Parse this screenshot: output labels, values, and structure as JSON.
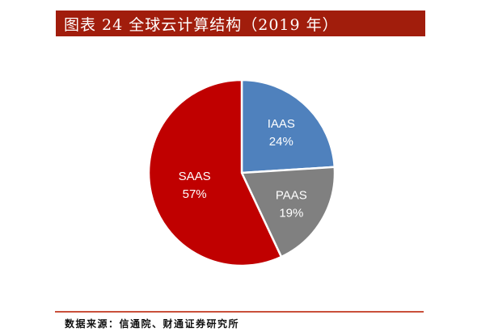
{
  "header": {
    "title": "图表 24 全球云计算结构（2019 年）"
  },
  "footer": {
    "source": "数据来源：信通院、财通证券研究所"
  },
  "colors": {
    "title_bar": "#a11d0c",
    "footer_line": "#c9503a",
    "iaas": "#4f81bd",
    "paas": "#808080",
    "saas": "#c00000"
  },
  "chart_data": {
    "type": "pie",
    "title": "全球云计算结构（2019 年）",
    "categories": [
      "IAAS",
      "PAAS",
      "SAAS"
    ],
    "values": [
      24,
      19,
      57
    ],
    "unit": "%",
    "start_angle_deg": 0,
    "direction": "clockwise",
    "legend": "none (labels inside slices)",
    "slices": [
      {
        "label": "IAAS",
        "value": 24,
        "value_label": "24%",
        "color": "#4f81bd"
      },
      {
        "label": "PAAS",
        "value": 19,
        "value_label": "19%",
        "color": "#808080"
      },
      {
        "label": "SAAS",
        "value": 57,
        "value_label": "57%",
        "color": "#c00000"
      }
    ]
  }
}
